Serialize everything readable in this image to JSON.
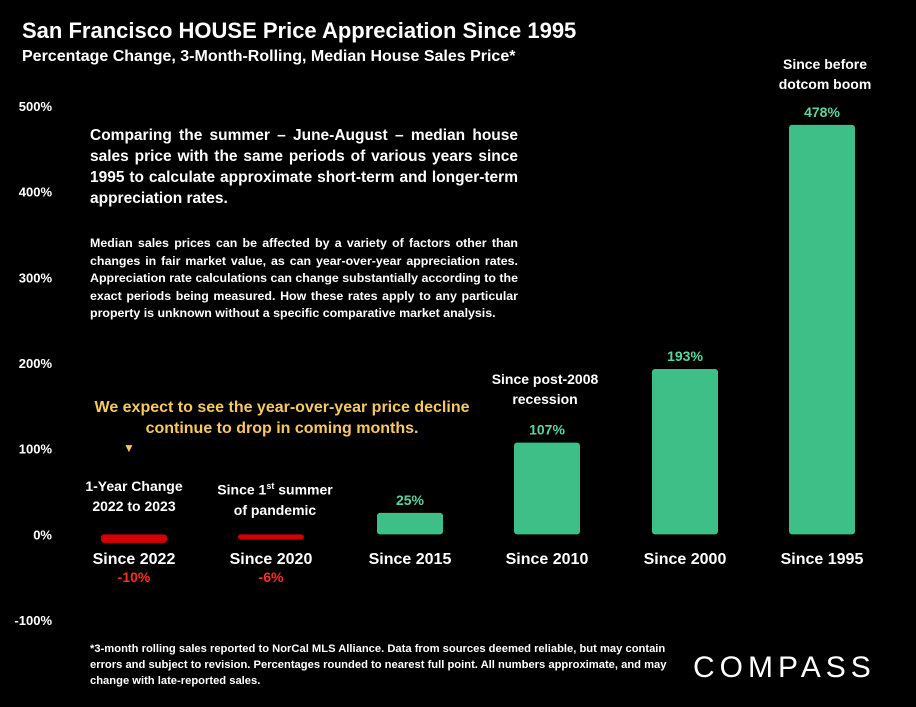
{
  "header": {
    "title": "San Francisco HOUSE Price Appreciation Since 1995",
    "subtitle": "Percentage Change, 3-Month-Rolling, Median House Sales Price*"
  },
  "description": {
    "main": "Comparing the summer – June-August – median house sales price with the same periods of various years since 1995 to calculate approximate short-term and longer-term appreciation rates.",
    "detail": "Median sales prices can be affected by a variety of factors other than changes in fair market value, as can year-over-year appreciation rates. Appreciation rate calculations can change substantially according to the exact periods being measured. How these rates apply to any particular property is unknown without a specific comparative market analysis."
  },
  "forecast_note": {
    "text": "We expect to see the year-over-year price decline continue to drop in coming months.",
    "arrow": "▼"
  },
  "annotations": {
    "one_year_line1": "1-Year Change",
    "one_year_line2": "2022 to 2023",
    "pandemic_line1_pre": "Since 1",
    "pandemic_line1_sup": "st",
    "pandemic_line1_post": " summer",
    "pandemic_line2": "of pandemic",
    "post2008_line1": "Since post-2008",
    "post2008_line2": "recession",
    "dotcom_line1": "Since before",
    "dotcom_line2": "dotcom boom"
  },
  "footnote": "*3-month rolling sales reported to NorCal MLS Alliance. Data from sources deemed reliable, but may contain errors and subject to revision. Percentages rounded to nearest full point. All numbers approximate, and may change with late-reported sales.",
  "logo": "COMPASS",
  "colors": {
    "positive": "#3dbf87",
    "negative": "#d40000",
    "positive_label": "#5dd39e",
    "negative_label": "#ff2a2a",
    "forecast": "#f6c85f",
    "background": "#000000"
  },
  "chart_data": {
    "type": "bar",
    "title": "San Francisco HOUSE Price Appreciation Since 1995",
    "subtitle": "Percentage Change, 3-Month-Rolling, Median House Sales Price*",
    "categories": [
      "Since 2022",
      "Since 2020",
      "Since 2015",
      "Since 2010",
      "Since 2000",
      "Since 1995"
    ],
    "values": [
      -10,
      -6,
      25,
      107,
      193,
      478
    ],
    "value_labels": [
      "-10%",
      "-6%",
      "25%",
      "107%",
      "193%",
      "478%"
    ],
    "unit": "%",
    "ylim": [
      -100,
      500
    ],
    "yticks": [
      -100,
      0,
      100,
      200,
      300,
      400,
      500
    ],
    "ytick_labels": [
      "-100%",
      "0%",
      "100%",
      "200%",
      "300%",
      "400%",
      "500%"
    ],
    "grid": false,
    "legend": "none"
  }
}
